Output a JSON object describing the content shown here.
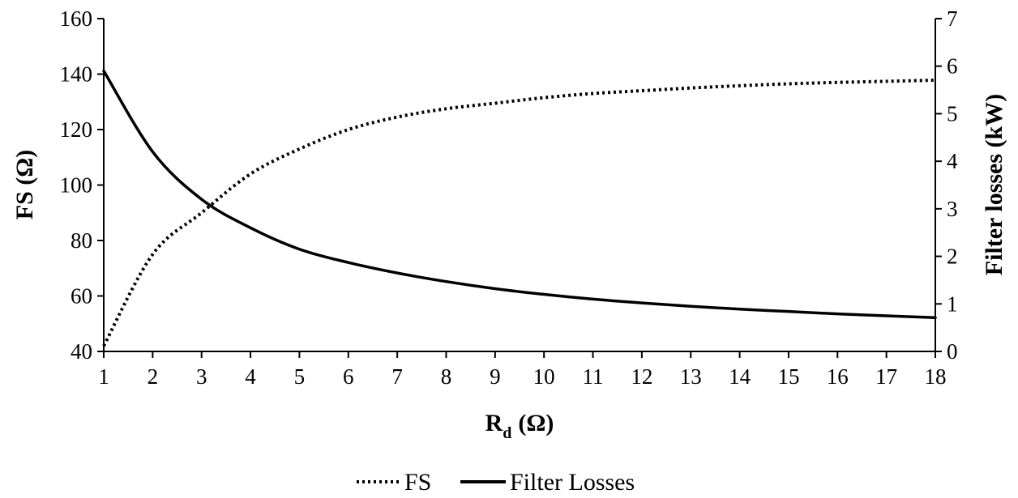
{
  "chart_data": {
    "type": "line",
    "xlabel": "R",
    "xlabel_subscript": "d",
    "xlabel_unit": "(Ω)",
    "ylabel": "FS (Ω)",
    "y2label": "Filter losses (kW)",
    "xlim": [
      1,
      18
    ],
    "ylim": [
      40,
      160
    ],
    "y2lim": [
      0,
      7
    ],
    "x_ticks": [
      1,
      2,
      3,
      4,
      5,
      6,
      7,
      8,
      9,
      10,
      11,
      12,
      13,
      14,
      15,
      16,
      17,
      18
    ],
    "y_ticks": [
      40,
      60,
      80,
      100,
      120,
      140,
      160
    ],
    "y2_ticks": [
      0,
      1,
      2,
      3,
      4,
      5,
      6,
      7
    ],
    "grid": false,
    "legend_position": "bottom-center",
    "series": [
      {
        "name": "FS",
        "axis": "left",
        "style": "dotted",
        "color": "#000000",
        "x": [
          1,
          2,
          3,
          4,
          5,
          6,
          7,
          8,
          9,
          10,
          11,
          12,
          13,
          14,
          15,
          16,
          17,
          18
        ],
        "values": [
          42,
          75,
          90,
          104,
          113,
          120,
          124.5,
          127.5,
          129.5,
          131.5,
          133,
          134,
          135,
          135.8,
          136.5,
          137,
          137.4,
          137.8
        ]
      },
      {
        "name": "Filter Losses",
        "axis": "right",
        "style": "solid",
        "color": "#000000",
        "x": [
          1,
          2,
          3,
          4,
          5,
          6,
          7,
          8,
          9,
          10,
          11,
          12,
          13,
          14,
          15,
          16,
          17,
          18
        ],
        "values": [
          5.9,
          4.2,
          3.2,
          2.6,
          2.15,
          1.87,
          1.65,
          1.47,
          1.32,
          1.2,
          1.1,
          1.02,
          0.95,
          0.89,
          0.84,
          0.79,
          0.75,
          0.71
        ]
      }
    ]
  }
}
